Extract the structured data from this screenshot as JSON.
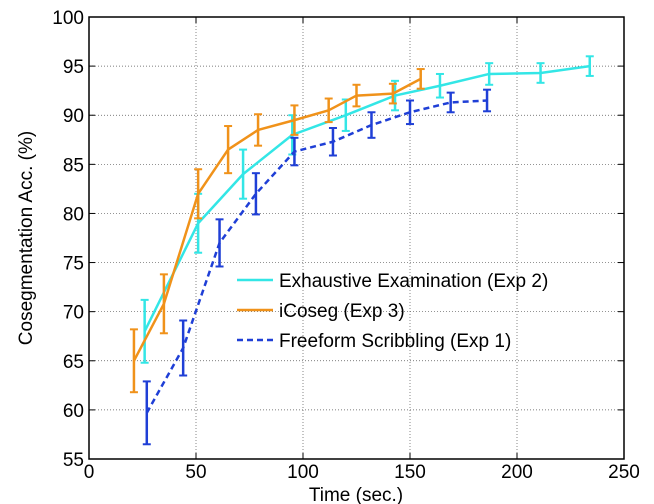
{
  "chart_data": {
    "type": "line",
    "title": "",
    "xlabel": "Time (sec.)",
    "ylabel": "Cosegmentation Acc. (%)",
    "xlim": [
      0,
      250
    ],
    "ylim": [
      55,
      100
    ],
    "xticks": [
      0,
      50,
      100,
      150,
      200,
      250
    ],
    "yticks": [
      55,
      60,
      65,
      70,
      75,
      80,
      85,
      90,
      95,
      100
    ],
    "grid": true,
    "legend_position": "center-right",
    "series": [
      {
        "name": "Exhaustive Examination (Exp 2)",
        "color": "#33e6e6",
        "style": "solid",
        "x": [
          26,
          51,
          72,
          95,
          120,
          143,
          164,
          187,
          211,
          234
        ],
        "y": [
          68.0,
          79.0,
          84.0,
          88.0,
          90.0,
          92.0,
          93.0,
          94.2,
          94.3,
          95.0
        ],
        "err": [
          3.2,
          3.0,
          2.5,
          2.0,
          1.6,
          1.5,
          1.2,
          1.1,
          1.0,
          1.0
        ]
      },
      {
        "name": "iCoseg (Exp 3)",
        "color": "#f0921a",
        "style": "solid",
        "x": [
          21,
          35,
          51,
          65,
          79,
          96,
          112,
          125,
          142,
          155
        ],
        "y": [
          65.0,
          70.8,
          82.0,
          86.5,
          88.5,
          89.5,
          90.5,
          92.0,
          92.2,
          93.7
        ],
        "err": [
          3.2,
          3.0,
          2.5,
          2.4,
          1.6,
          1.5,
          1.2,
          1.1,
          1.0,
          1.0
        ]
      },
      {
        "name": "Freeform Scribbling (Exp 1)",
        "color": "#1f3fd6",
        "style": "dashed",
        "x": [
          27,
          44,
          61,
          78,
          96,
          114,
          132,
          150,
          169,
          186
        ],
        "y": [
          59.7,
          66.3,
          77.0,
          82.0,
          86.3,
          87.3,
          89.0,
          90.3,
          91.3,
          91.5
        ],
        "err": [
          3.2,
          2.8,
          2.4,
          2.1,
          1.4,
          1.4,
          1.3,
          1.2,
          1.0,
          1.1
        ]
      }
    ]
  }
}
